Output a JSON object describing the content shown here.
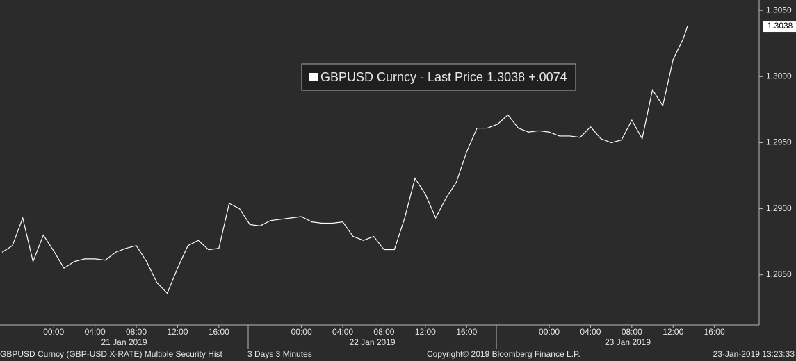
{
  "chart_data": {
    "type": "line",
    "series": [
      {
        "name": "GBPUSD Curncy - Last Price 1.3038  +.0074",
        "color": "#ffffff",
        "x": [
          "2019-01-20T19:00",
          "2019-01-20T20:00",
          "2019-01-20T21:00",
          "2019-01-20T22:00",
          "2019-01-20T23:00",
          "2019-01-21T00:00",
          "2019-01-21T01:00",
          "2019-01-21T02:00",
          "2019-01-21T03:00",
          "2019-01-21T04:00",
          "2019-01-21T05:00",
          "2019-01-21T06:00",
          "2019-01-21T07:00",
          "2019-01-21T08:00",
          "2019-01-21T09:00",
          "2019-01-21T10:00",
          "2019-01-21T11:00",
          "2019-01-21T12:00",
          "2019-01-21T13:00",
          "2019-01-21T14:00",
          "2019-01-21T15:00",
          "2019-01-21T16:00",
          "2019-01-21T17:00",
          "2019-01-21T18:00",
          "2019-01-21T19:00",
          "2019-01-21T20:00",
          "2019-01-21T21:00",
          "2019-01-21T22:00",
          "2019-01-21T23:00",
          "2019-01-22T00:00",
          "2019-01-22T01:00",
          "2019-01-22T02:00",
          "2019-01-22T03:00",
          "2019-01-22T04:00",
          "2019-01-22T05:00",
          "2019-01-22T06:00",
          "2019-01-22T07:00",
          "2019-01-22T08:00",
          "2019-01-22T09:00",
          "2019-01-22T10:00",
          "2019-01-22T11:00",
          "2019-01-22T12:00",
          "2019-01-22T13:00",
          "2019-01-22T14:00",
          "2019-01-22T15:00",
          "2019-01-22T16:00",
          "2019-01-22T17:00",
          "2019-01-22T18:00",
          "2019-01-22T19:00",
          "2019-01-22T20:00",
          "2019-01-22T21:00",
          "2019-01-22T22:00",
          "2019-01-22T23:00",
          "2019-01-23T00:00",
          "2019-01-23T01:00",
          "2019-01-23T02:00",
          "2019-01-23T03:00",
          "2019-01-23T04:00",
          "2019-01-23T05:00",
          "2019-01-23T06:00",
          "2019-01-23T07:00",
          "2019-01-23T08:00",
          "2019-01-23T09:00",
          "2019-01-23T10:00",
          "2019-01-23T11:00",
          "2019-01-23T12:00",
          "2019-01-23T13:00",
          "2019-01-23T13:23"
        ],
        "values": [
          1.2867,
          1.2872,
          1.2893,
          1.286,
          1.288,
          1.2868,
          1.2855,
          1.286,
          1.2862,
          1.2862,
          1.2861,
          1.2867,
          1.287,
          1.2872,
          1.286,
          1.2844,
          1.2836,
          1.2855,
          1.2872,
          1.2876,
          1.2869,
          1.287,
          1.2904,
          1.29,
          1.2888,
          1.2887,
          1.2891,
          1.2892,
          1.2893,
          1.2894,
          1.289,
          1.2889,
          1.2889,
          1.289,
          1.2879,
          1.2876,
          1.2879,
          1.2869,
          1.2869,
          1.2893,
          1.2923,
          1.2911,
          1.2893,
          1.2908,
          1.292,
          1.2943,
          1.2961,
          1.2961,
          1.2964,
          1.2971,
          1.2961,
          1.2958,
          1.2959,
          1.2958,
          1.2955,
          1.2955,
          1.2954,
          1.2962,
          1.2953,
          1.295,
          1.2952,
          1.2967,
          1.2953,
          1.299,
          1.2978,
          1.3013,
          1.3029,
          1.3038
        ]
      }
    ],
    "xlim": [
      "2019-01-20T18:48",
      "2019-01-23T20:20"
    ],
    "xticks": [
      {
        "value": "2019-01-21T00:00",
        "label": "00:00"
      },
      {
        "value": "2019-01-21T04:00",
        "label": "04:00"
      },
      {
        "value": "2019-01-21T08:00",
        "label": "08:00"
      },
      {
        "value": "2019-01-21T12:00",
        "label": "12:00"
      },
      {
        "value": "2019-01-21T16:00",
        "label": "16:00"
      },
      {
        "value": "2019-01-22T00:00",
        "label": "00:00"
      },
      {
        "value": "2019-01-22T04:00",
        "label": "04:00"
      },
      {
        "value": "2019-01-22T08:00",
        "label": "08:00"
      },
      {
        "value": "2019-01-22T12:00",
        "label": "12:00"
      },
      {
        "value": "2019-01-22T16:00",
        "label": "16:00"
      },
      {
        "value": "2019-01-23T00:00",
        "label": "00:00"
      },
      {
        "value": "2019-01-23T04:00",
        "label": "04:00"
      },
      {
        "value": "2019-01-23T08:00",
        "label": "08:00"
      },
      {
        "value": "2019-01-23T12:00",
        "label": "12:00"
      },
      {
        "value": "2019-01-23T16:00",
        "label": "16:00"
      }
    ],
    "x_dates": [
      "21 Jan 2019",
      "22 Jan 2019",
      "23 Jan 2019"
    ],
    "ylim": [
      1.2812,
      1.3058
    ],
    "yticks": [
      {
        "value": 1.285,
        "label": "1.2850"
      },
      {
        "value": 1.29,
        "label": "1.2900"
      },
      {
        "value": 1.295,
        "label": "1.2950"
      },
      {
        "value": 1.3,
        "label": "1.3000"
      },
      {
        "value": 1.305,
        "label": "1.3050"
      }
    ],
    "last_price": {
      "value": 1.3038,
      "label": "1.3038"
    },
    "footer": [
      "GBPUSD Curncy (GBP-USD X-RATE) Multiple Security Hist",
      "3 Days 3 Minutes",
      "Copyright© 2019 Bloomberg Finance L.P.",
      "23-Jan-2019 13:23:33"
    ]
  }
}
